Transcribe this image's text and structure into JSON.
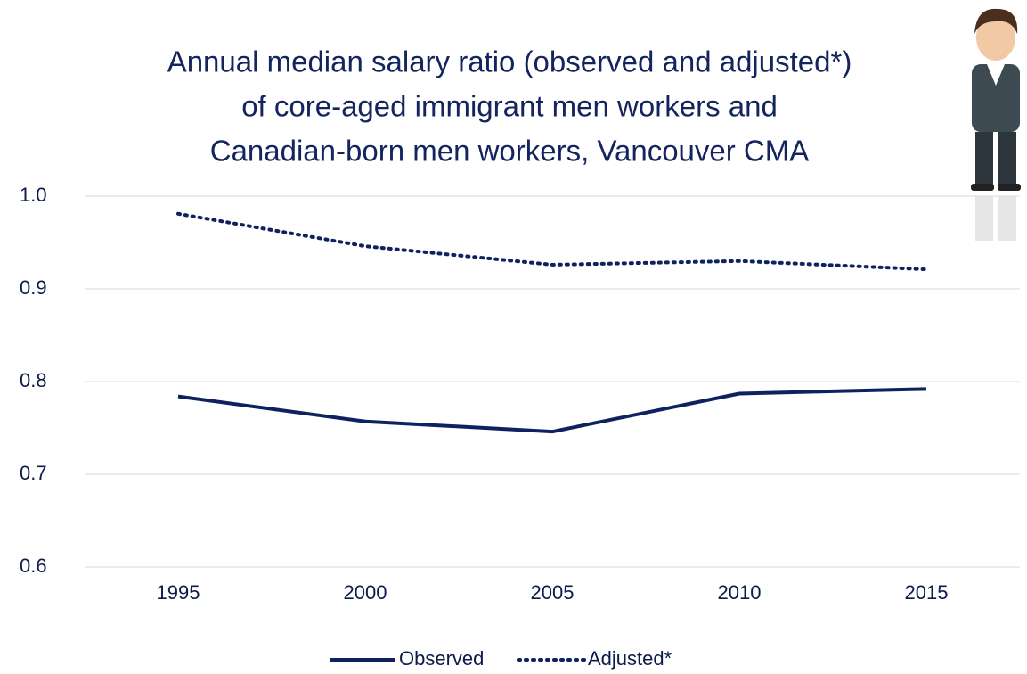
{
  "chart_data": {
    "type": "line",
    "title": [
      "Annual median salary ratio (observed and adjusted*)",
      "of core-aged immigrant men workers and",
      "Canadian-born men workers, Vancouver CMA"
    ],
    "categories": [
      "1995",
      "2000",
      "2005",
      "2010",
      "2015"
    ],
    "series": [
      {
        "name": "Observed",
        "color": "#0e2260",
        "style": "solid",
        "values": [
          0.784,
          0.757,
          0.746,
          0.787,
          0.792
        ]
      },
      {
        "name": "Adjusted*",
        "color": "#0e2260",
        "style": "dotted",
        "values": [
          0.981,
          0.946,
          0.926,
          0.93,
          0.921
        ]
      }
    ],
    "ylim": [
      0.6,
      1.0
    ],
    "yticks": [
      0.6,
      0.7,
      0.8,
      0.9,
      {
        "value": 1.0,
        "label": "1.0"
      }
    ],
    "grid": true,
    "legend": "bottom"
  }
}
